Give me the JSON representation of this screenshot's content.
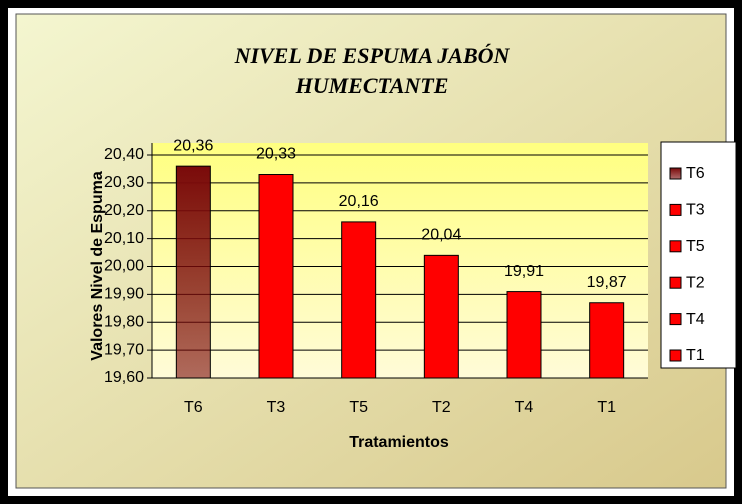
{
  "chart_data": {
    "type": "bar",
    "title": "NIVEL DE ESPUMA  JABÓN",
    "subtitle": "HUMECTANTE",
    "x_label": "Tratamientos",
    "y_label": "Valores Nivel de Espuma",
    "categories": [
      "T6",
      "T3",
      "T5",
      "T2",
      "T4",
      "T1"
    ],
    "values": [
      20.36,
      20.33,
      20.16,
      20.04,
      19.91,
      19.87
    ],
    "value_labels": [
      "20,36",
      "20,33",
      "20,16",
      "20,04",
      "19,91",
      "19,87"
    ],
    "colors": [
      "#7a0a0a",
      "#ff0000",
      "#ff0000",
      "#ff0000",
      "#ff0000",
      "#ff0000"
    ],
    "ylim": [
      19.6,
      20.4
    ],
    "yticks": [
      {
        "value": 19.6,
        "label": "19,60"
      },
      {
        "value": 19.7,
        "label": "19,70"
      },
      {
        "value": 19.8,
        "label": "19,80"
      },
      {
        "value": 19.9,
        "label": "19,90"
      },
      {
        "value": 20.0,
        "label": "20,00"
      },
      {
        "value": 20.1,
        "label": "20,10"
      },
      {
        "value": 20.2,
        "label": "20,20"
      },
      {
        "value": 20.3,
        "label": "20,30"
      },
      {
        "value": 20.4,
        "label": "20,40"
      }
    ],
    "grid": true,
    "legend": "right"
  }
}
